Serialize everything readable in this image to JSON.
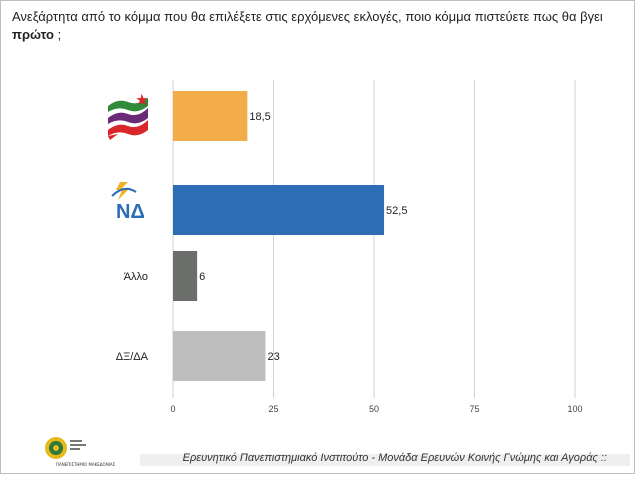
{
  "question": {
    "text": "Ανεξάρτητα από το κόμμα που θα επιλέξετε στις ερχόμενες εκλογές, ποιο κόμμα πιστεύετε πως θα βγει ",
    "emphasis": "πρώτο",
    "suffix": " ;"
  },
  "chart_data": {
    "type": "bar",
    "orientation": "horizontal",
    "categories": [
      "ΣΥΡΙΖΑ-logo",
      "ΝΔ",
      "Άλλο",
      "ΔΞ/ΔΑ"
    ],
    "category_text": [
      "",
      "",
      "Άλλο",
      "ΔΞ/ΔΑ"
    ],
    "values": [
      18.5,
      52.5,
      6,
      23
    ],
    "value_labels": [
      "18,5",
      "52,5",
      "6",
      "23"
    ],
    "colors": [
      "#F2AD48",
      "#2C6DB5",
      "#6C6E6C",
      "#BDBEBD"
    ],
    "xlim": [
      0,
      100
    ],
    "xticks": [
      0,
      25,
      50,
      75,
      100
    ],
    "grid": true,
    "logo_text": {
      "nd": "ΝΔ"
    }
  },
  "footer": {
    "text": "Ερευνητικό Πανεπιστημιακό Ινστιτούτο - Μονάδα Ερευνών Κοινής Γνώμης και Αγοράς ::",
    "caption": "ΠΑΝΕΠΙΣΤΗΜΙΟ ΜΑΚΕΔΟΝΙΑΣ"
  }
}
